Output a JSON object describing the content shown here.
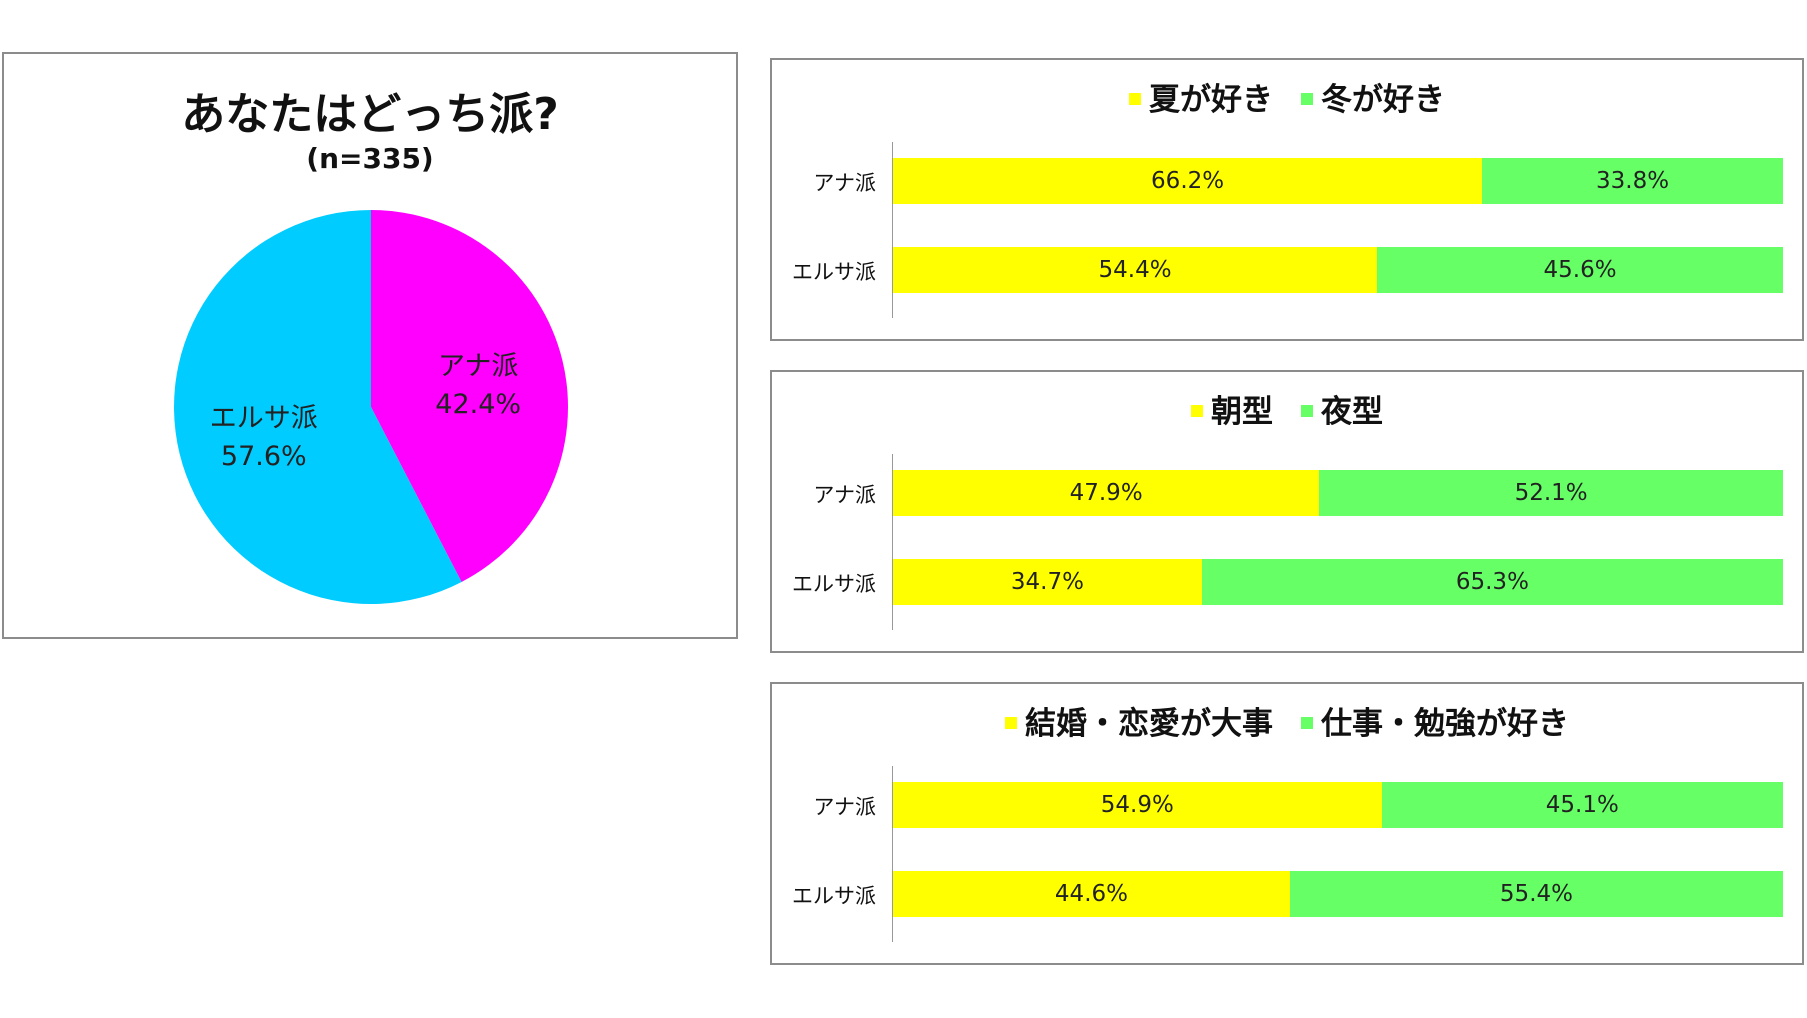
{
  "pie": {
    "title": "あなたはどっち派?",
    "subtitle": "(n=335)"
  },
  "chart_data": [
    {
      "type": "pie",
      "title": "あなたはどっち派?",
      "subtitle": "(n=335)",
      "slices": [
        {
          "label": "アナ派",
          "value": 42.4,
          "value_label": "42.4%",
          "color": "#ff00ff"
        },
        {
          "label": "エルサ派",
          "value": 57.6,
          "value_label": "57.6%",
          "color": "#00ccff"
        }
      ]
    },
    {
      "type": "bar",
      "stacked": true,
      "orientation": "horizontal",
      "categories": [
        "アナ派",
        "エルサ派"
      ],
      "series": [
        {
          "name": "夏が好き",
          "color": "#ffff00",
          "values": [
            66.2,
            54.4
          ],
          "labels": [
            "66.2%",
            "54.4%"
          ]
        },
        {
          "name": "冬が好き",
          "color": "#66ff66",
          "values": [
            33.8,
            45.6
          ],
          "labels": [
            "33.8%",
            "45.6%"
          ]
        }
      ],
      "xlim": [
        0,
        100
      ],
      "legend": "top"
    },
    {
      "type": "bar",
      "stacked": true,
      "orientation": "horizontal",
      "categories": [
        "アナ派",
        "エルサ派"
      ],
      "series": [
        {
          "name": "朝型",
          "color": "#ffff00",
          "values": [
            47.9,
            34.7
          ],
          "labels": [
            "47.9%",
            "34.7%"
          ]
        },
        {
          "name": "夜型",
          "color": "#66ff66",
          "values": [
            52.1,
            65.3
          ],
          "labels": [
            "52.1%",
            "65.3%"
          ]
        }
      ],
      "xlim": [
        0,
        100
      ],
      "legend": "top"
    },
    {
      "type": "bar",
      "stacked": true,
      "orientation": "horizontal",
      "categories": [
        "アナ派",
        "エルサ派"
      ],
      "series": [
        {
          "name": "結婚・恋愛が大事",
          "color": "#ffff00",
          "values": [
            54.9,
            44.6
          ],
          "labels": [
            "54.9%",
            "44.6%"
          ]
        },
        {
          "name": "仕事・勉強が好き",
          "color": "#66ff66",
          "values": [
            45.1,
            55.4
          ],
          "labels": [
            "45.1%",
            "55.4%"
          ]
        }
      ],
      "xlim": [
        0,
        100
      ],
      "legend": "top"
    }
  ]
}
